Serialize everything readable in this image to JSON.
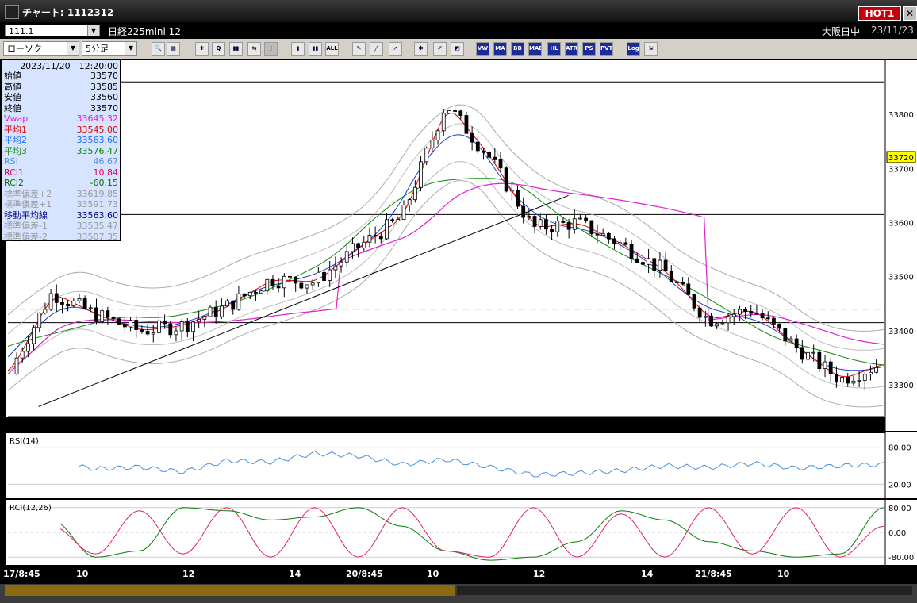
{
  "window": {
    "title": "チャート: 1112312",
    "hot_label": "HOT1",
    "close_label": "✕"
  },
  "symbol_row": {
    "symbol": "111.1",
    "market": "日経225mini 12",
    "session": "大阪日中",
    "date": "23/11/23"
  },
  "toolbar": {
    "chart_type": "ローソク",
    "interval": "5分足",
    "buttons": [
      {
        "name": "zoom-icon",
        "label": "🔍"
      },
      {
        "name": "table-icon",
        "label": "▦"
      },
      {
        "name": "crosshair-icon",
        "label": "✚"
      },
      {
        "name": "q-icon",
        "label": "Q"
      },
      {
        "name": "bars-icon",
        "label": "▮▮"
      },
      {
        "name": "arrows-icon",
        "label": "⇆"
      },
      {
        "name": "disabled-icon",
        "label": "▯"
      },
      {
        "name": "candle-icon",
        "label": "▮"
      },
      {
        "name": "candle2-icon",
        "label": "▮▮"
      },
      {
        "name": "all-icon",
        "label": "ALL"
      },
      {
        "name": "pen-icon",
        "label": "✎"
      },
      {
        "name": "line-icon",
        "label": "╱"
      },
      {
        "name": "cursor-icon",
        "label": "➚"
      },
      {
        "name": "paint-icon",
        "label": "✱"
      },
      {
        "name": "brush-icon",
        "label": "✐"
      },
      {
        "name": "palette-icon",
        "label": "◩"
      },
      {
        "name": "vwap-button",
        "label": "VW"
      },
      {
        "name": "ma-button",
        "label": "MA"
      },
      {
        "name": "bb-button",
        "label": "BB"
      },
      {
        "name": "mae-button",
        "label": "MAE"
      },
      {
        "name": "hl-button",
        "label": "HL"
      },
      {
        "name": "atr-button",
        "label": "ATR"
      },
      {
        "name": "ps-button",
        "label": "PS"
      },
      {
        "name": "pvt-button",
        "label": "PVT"
      },
      {
        "name": "log-button",
        "label": "Log"
      },
      {
        "name": "export-icon",
        "label": "⇲"
      }
    ]
  },
  "info_panel": {
    "datetime": "2023/11/20　12:20:00",
    "rows": [
      {
        "label": "始値",
        "value": "33570",
        "color": "#000000"
      },
      {
        "label": "高値",
        "value": "33585",
        "color": "#000000"
      },
      {
        "label": "安値",
        "value": "33560",
        "color": "#000000"
      },
      {
        "label": "終値",
        "value": "33570",
        "color": "#000000"
      },
      {
        "label": "Vwap",
        "value": "33645.32",
        "color": "#e020d0"
      },
      {
        "label": "平均1",
        "value": "33545.00",
        "color": "#e00000"
      },
      {
        "label": "平均2",
        "value": "33563.60",
        "color": "#1a6fff"
      },
      {
        "label": "平均3",
        "value": "33576.47",
        "color": "#0a8a0a"
      },
      {
        "label": "RSI",
        "value": "46.67",
        "color": "#5a8fe0"
      },
      {
        "label": "RCI1",
        "value": "10.84",
        "color": "#e00060"
      },
      {
        "label": "RCI2",
        "value": "-60.15",
        "color": "#0a6a0a"
      },
      {
        "label": "標準偏差+2",
        "value": "33619.85",
        "color": "#9a9a9a"
      },
      {
        "label": "標準偏差+1",
        "value": "33591.73",
        "color": "#9a9a9a"
      },
      {
        "label": "移動平均線",
        "value": "33563.60",
        "color": "#000080"
      },
      {
        "label": "標準偏差-1",
        "value": "33535.47",
        "color": "#9a9a9a"
      },
      {
        "label": "標準偏差-2",
        "value": "33507.35",
        "color": "#9a9a9a"
      }
    ]
  },
  "chart_data": {
    "type": "candlestick",
    "price_axis": {
      "ticks": [
        33300,
        33400,
        33500,
        33600,
        33700,
        33800
      ],
      "range": [
        33240,
        33900
      ]
    },
    "current_price": "33720",
    "x_labels": [
      "17/8:45",
      "10",
      "12",
      "14",
      "20/8:45",
      "10",
      "12",
      "14",
      "21/8:45",
      "10"
    ],
    "price_series": {
      "x": [
        0,
        5,
        10,
        15,
        20,
        25,
        30,
        35,
        40,
        45,
        50,
        55,
        60,
        65,
        70,
        75,
        80,
        85,
        90,
        95,
        100
      ],
      "close": [
        33320,
        33470,
        33430,
        33400,
        33410,
        33445,
        33495,
        33490,
        33555,
        33610,
        33820,
        33720,
        33590,
        33600,
        33560,
        33510,
        33420,
        33440,
        33370,
        33310,
        33340
      ]
    },
    "horizontal_lines": [
      33860,
      33615,
      33415
    ],
    "dashed_line": 33440,
    "rsi": {
      "label": "RSI(14)",
      "ticks": [
        "80.00",
        "20.00"
      ],
      "range": [
        0,
        100
      ],
      "x": [
        0,
        5,
        10,
        15,
        20,
        25,
        30,
        35,
        40,
        45,
        50,
        55,
        60,
        65,
        70,
        75,
        80,
        85,
        90,
        95,
        100
      ],
      "values": [
        52,
        55,
        45,
        48,
        40,
        58,
        56,
        70,
        66,
        52,
        60,
        48,
        35,
        38,
        42,
        50,
        47,
        54,
        46,
        50,
        52
      ]
    },
    "rci": {
      "label": "RCI(12,26)",
      "ticks": [
        "80.00",
        "0.00",
        "-80.00"
      ],
      "range": [
        -100,
        100
      ],
      "rci1": [
        80,
        20,
        -70,
        70,
        -70,
        80,
        -80,
        80,
        -80,
        80,
        -60,
        -80,
        80,
        -80,
        60,
        -80,
        80,
        -70,
        80,
        -80,
        20
      ],
      "rci2": [
        60,
        40,
        -80,
        -60,
        80,
        70,
        40,
        50,
        80,
        20,
        -60,
        -90,
        -80,
        -30,
        70,
        40,
        -30,
        -60,
        -80,
        -70,
        80
      ]
    }
  }
}
